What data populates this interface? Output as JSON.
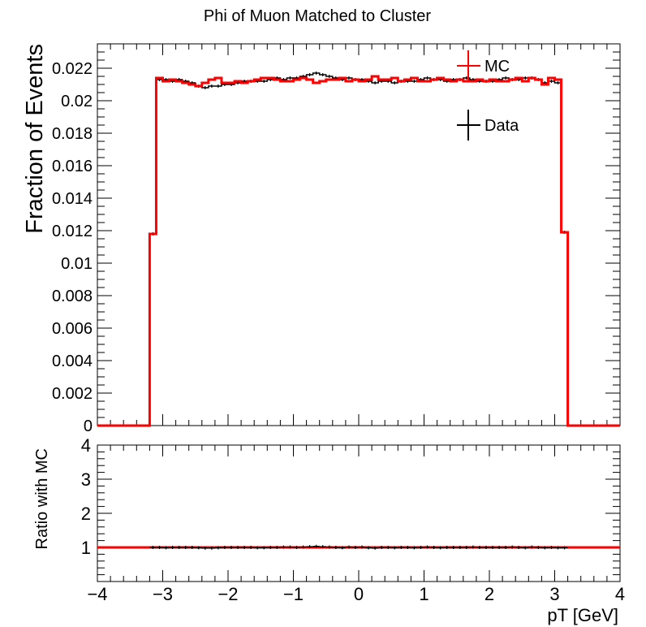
{
  "chart_data": [
    {
      "type": "line",
      "title": "Phi of Muon Matched to Cluster",
      "ylabel": "Fraction of Events",
      "xlim": [
        -4,
        4
      ],
      "ylim": [
        0,
        0.0235
      ],
      "y_ticks": [
        {
          "value": 0,
          "label": "0"
        },
        {
          "value": 0.002,
          "label": "0.002"
        },
        {
          "value": 0.004,
          "label": "0.004"
        },
        {
          "value": 0.006,
          "label": "0.006"
        },
        {
          "value": 0.008,
          "label": "0.008"
        },
        {
          "value": 0.01,
          "label": "0.01"
        },
        {
          "value": 0.012,
          "label": "0.012"
        },
        {
          "value": 0.014,
          "label": "0.014"
        },
        {
          "value": 0.016,
          "label": "0.016"
        },
        {
          "value": 0.018,
          "label": "0.018"
        },
        {
          "value": 0.02,
          "label": "0.02"
        },
        {
          "value": 0.022,
          "label": "0.022"
        }
      ],
      "legend": {
        "position": "top-right",
        "entries": [
          "MC",
          "Data"
        ]
      },
      "bin_edges": [
        -4.0,
        -3.2,
        -3.1,
        -3.0,
        -2.9,
        -2.8,
        -2.7,
        -2.6,
        -2.5,
        -2.4,
        -2.3,
        -2.2,
        -2.1,
        -2.0,
        -1.9,
        -1.8,
        -1.7,
        -1.6,
        -1.5,
        -1.4,
        -1.3,
        -1.2,
        -1.1,
        -1.0,
        -0.9,
        -0.8,
        -0.7,
        -0.6,
        -0.5,
        -0.4,
        -0.3,
        -0.2,
        -0.1,
        0.0,
        0.1,
        0.2,
        0.3,
        0.4,
        0.5,
        0.6,
        0.7,
        0.8,
        0.9,
        1.0,
        1.1,
        1.2,
        1.3,
        1.4,
        1.5,
        1.6,
        1.7,
        1.8,
        1.9,
        2.0,
        2.1,
        2.2,
        2.3,
        2.4,
        2.5,
        2.6,
        2.7,
        2.8,
        2.9,
        3.0,
        3.1,
        3.2,
        4.0
      ],
      "series": [
        {
          "name": "MC",
          "color": "#ff0000",
          "values": [
            0,
            0.0118,
            0.0214,
            0.0212,
            0.0213,
            0.0212,
            0.0211,
            0.021,
            0.0209,
            0.0211,
            0.0213,
            0.0214,
            0.0211,
            0.0211,
            0.0212,
            0.0211,
            0.0212,
            0.0213,
            0.0214,
            0.0214,
            0.0213,
            0.0212,
            0.0212,
            0.0213,
            0.0214,
            0.0213,
            0.0211,
            0.0212,
            0.0213,
            0.0213,
            0.0214,
            0.0212,
            0.0213,
            0.0212,
            0.0213,
            0.0215,
            0.0213,
            0.0213,
            0.0214,
            0.0212,
            0.0213,
            0.0214,
            0.0212,
            0.0212,
            0.0213,
            0.0214,
            0.0213,
            0.0212,
            0.0213,
            0.0212,
            0.0212,
            0.0213,
            0.0212,
            0.0213,
            0.0212,
            0.0212,
            0.0213,
            0.0214,
            0.0212,
            0.0214,
            0.0213,
            0.021,
            0.0214,
            0.0213,
            0.0119,
            0
          ]
        },
        {
          "name": "Data",
          "color": "#000000",
          "values": [
            0,
            0.0118,
            0.0213,
            0.0213,
            0.0212,
            0.0213,
            0.0212,
            0.0211,
            0.0209,
            0.0208,
            0.0209,
            0.0209,
            0.021,
            0.021,
            0.0211,
            0.0212,
            0.0212,
            0.0212,
            0.0212,
            0.0213,
            0.0214,
            0.0213,
            0.0214,
            0.0214,
            0.0215,
            0.0216,
            0.0217,
            0.0216,
            0.0215,
            0.0214,
            0.0213,
            0.0214,
            0.0213,
            0.0213,
            0.0212,
            0.0211,
            0.0212,
            0.0212,
            0.0211,
            0.0212,
            0.0212,
            0.0212,
            0.0213,
            0.0214,
            0.0213,
            0.0213,
            0.0212,
            0.0213,
            0.0213,
            0.0214,
            0.0213,
            0.0212,
            0.0212,
            0.0212,
            0.0213,
            0.0214,
            0.0213,
            0.0213,
            0.0214,
            0.0214,
            0.0213,
            0.0211,
            0.0212,
            0.0211,
            0.0119,
            0
          ]
        }
      ]
    },
    {
      "type": "line",
      "ylabel": "Ratio with MC",
      "xlabel": "pT [GeV]",
      "xlim": [
        -4,
        4
      ],
      "ylim": [
        0,
        4
      ],
      "x_ticks": [
        {
          "value": -4,
          "label": "−4"
        },
        {
          "value": -3,
          "label": "−3"
        },
        {
          "value": -2,
          "label": "−2"
        },
        {
          "value": -1,
          "label": "−1"
        },
        {
          "value": 0,
          "label": "0"
        },
        {
          "value": 1,
          "label": "1"
        },
        {
          "value": 2,
          "label": "2"
        },
        {
          "value": 3,
          "label": "3"
        },
        {
          "value": 4,
          "label": "4"
        }
      ],
      "y_ticks": [
        {
          "value": 1,
          "label": "1"
        },
        {
          "value": 2,
          "label": "2"
        },
        {
          "value": 3,
          "label": "3"
        },
        {
          "value": 4,
          "label": "4"
        }
      ],
      "reference_line": {
        "value": 1,
        "color": "#ff0000"
      },
      "bin_edges": [
        -3.2,
        -3.1,
        -3.0,
        -2.9,
        -2.8,
        -2.7,
        -2.6,
        -2.5,
        -2.4,
        -2.3,
        -2.2,
        -2.1,
        -2.0,
        -1.9,
        -1.8,
        -1.7,
        -1.6,
        -1.5,
        -1.4,
        -1.3,
        -1.2,
        -1.1,
        -1.0,
        -0.9,
        -0.8,
        -0.7,
        -0.6,
        -0.5,
        -0.4,
        -0.3,
        -0.2,
        -0.1,
        0.0,
        0.1,
        0.2,
        0.3,
        0.4,
        0.5,
        0.6,
        0.7,
        0.8,
        0.9,
        1.0,
        1.1,
        1.2,
        1.3,
        1.4,
        1.5,
        1.6,
        1.7,
        1.8,
        1.9,
        2.0,
        2.1,
        2.2,
        2.3,
        2.4,
        2.5,
        2.6,
        2.7,
        2.8,
        2.9,
        3.0,
        3.1,
        3.2
      ],
      "series": [
        {
          "color": "#000000",
          "values": [
            1.0,
            1.0,
            0.99,
            1.0,
            1.0,
            1.0,
            1.0,
            0.99,
            0.98,
            0.98,
            0.99,
            1.0,
            1.0,
            1.0,
            1.0,
            1.0,
            0.99,
            0.99,
            1.0,
            1.0,
            1.01,
            1.01,
            1.0,
            1.01,
            1.02,
            1.03,
            1.02,
            1.01,
            1.0,
            0.99,
            1.01,
            1.0,
            1.01,
            0.99,
            0.98,
            1.0,
            1.0,
            0.99,
            1.0,
            1.0,
            0.99,
            1.0,
            1.01,
            1.0,
            0.99,
            1.0,
            1.0,
            1.0,
            1.0,
            1.01,
            1.0,
            1.0,
            1.0,
            1.0,
            1.0,
            1.01,
            1.0,
            0.99,
            1.01,
            1.0,
            0.99,
            1.0,
            0.99,
            0.99
          ]
        }
      ]
    }
  ]
}
